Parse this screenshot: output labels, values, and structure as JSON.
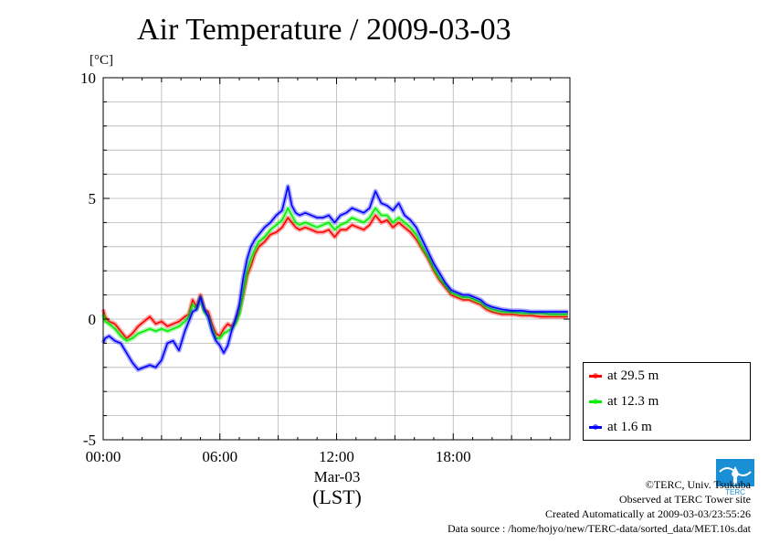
{
  "chart_data": {
    "type": "line",
    "title": "Air Temperature / 2009-03-03",
    "ylabel": "[°C]",
    "xlabel": "(LST)",
    "date_label": "Mar-03",
    "ylim": [
      -5,
      10
    ],
    "xlim": [
      0,
      24
    ],
    "y_ticks": [
      {
        "value": 10,
        "label": "10"
      },
      {
        "value": 5,
        "label": "5"
      },
      {
        "value": 0,
        "label": "0"
      },
      {
        "value": -5,
        "label": "-5"
      }
    ],
    "x_ticks": [
      {
        "value": 0,
        "label": "00:00"
      },
      {
        "value": 6,
        "label": "06:00"
      },
      {
        "value": 12,
        "label": "12:00"
      },
      {
        "value": 18,
        "label": "18:00"
      }
    ],
    "grid": true,
    "legend_position": "lower-right-outside",
    "series": [
      {
        "name": "at 29.5 m",
        "color": "#ff0000",
        "x": [
          0,
          0.1,
          0.3,
          0.6,
          0.9,
          1.2,
          1.5,
          1.8,
          2.1,
          2.4,
          2.7,
          3.0,
          3.3,
          3.6,
          3.9,
          4.2,
          4.4,
          4.6,
          4.8,
          5.0,
          5.2,
          5.4,
          5.6,
          5.8,
          6.0,
          6.2,
          6.4,
          6.6,
          6.8,
          7.0,
          7.2,
          7.4,
          7.6,
          7.8,
          8.0,
          8.3,
          8.6,
          8.9,
          9.2,
          9.5,
          9.7,
          9.9,
          10.1,
          10.4,
          10.7,
          11.0,
          11.3,
          11.6,
          11.9,
          12.2,
          12.5,
          12.8,
          13.1,
          13.4,
          13.7,
          14.0,
          14.3,
          14.6,
          14.9,
          15.2,
          15.5,
          15.8,
          16.1,
          16.4,
          16.7,
          17.0,
          17.3,
          17.6,
          17.9,
          18.2,
          18.5,
          18.8,
          19.1,
          19.4,
          19.7,
          20.0,
          20.5,
          21.0,
          21.5,
          22.0,
          22.5,
          23.0,
          23.5,
          23.9
        ],
        "values": [
          0.4,
          0.1,
          -0.1,
          -0.2,
          -0.5,
          -0.8,
          -0.6,
          -0.3,
          -0.1,
          0.1,
          -0.2,
          -0.1,
          -0.3,
          -0.2,
          -0.1,
          0.1,
          0.2,
          0.8,
          0.5,
          1.0,
          0.4,
          0.3,
          -0.2,
          -0.6,
          -0.7,
          -0.4,
          -0.2,
          -0.3,
          -0.1,
          0.3,
          1.0,
          1.8,
          2.2,
          2.7,
          3.0,
          3.2,
          3.5,
          3.6,
          3.8,
          4.2,
          4.0,
          3.8,
          3.7,
          3.8,
          3.7,
          3.6,
          3.6,
          3.7,
          3.4,
          3.7,
          3.7,
          3.9,
          3.8,
          3.7,
          3.9,
          4.3,
          4.0,
          4.1,
          3.8,
          4.0,
          3.8,
          3.6,
          3.3,
          2.9,
          2.5,
          2.0,
          1.6,
          1.3,
          1.0,
          0.9,
          0.8,
          0.8,
          0.7,
          0.6,
          0.4,
          0.3,
          0.2,
          0.2,
          0.15,
          0.15,
          0.1,
          0.1,
          0.1,
          0.1
        ]
      },
      {
        "name": "at 12.3 m",
        "color": "#00ee00",
        "x": [
          0,
          0.1,
          0.3,
          0.6,
          0.9,
          1.2,
          1.5,
          1.8,
          2.1,
          2.4,
          2.7,
          3.0,
          3.3,
          3.6,
          3.9,
          4.2,
          4.4,
          4.6,
          4.8,
          5.0,
          5.2,
          5.4,
          5.6,
          5.8,
          6.0,
          6.2,
          6.4,
          6.6,
          6.8,
          7.0,
          7.2,
          7.4,
          7.6,
          7.8,
          8.0,
          8.3,
          8.6,
          8.9,
          9.2,
          9.5,
          9.7,
          9.9,
          10.1,
          10.4,
          10.7,
          11.0,
          11.3,
          11.6,
          11.9,
          12.2,
          12.5,
          12.8,
          13.1,
          13.4,
          13.7,
          14.0,
          14.3,
          14.6,
          14.9,
          15.2,
          15.5,
          15.8,
          16.1,
          16.4,
          16.7,
          17.0,
          17.3,
          17.6,
          17.9,
          18.2,
          18.5,
          18.8,
          19.1,
          19.4,
          19.7,
          20.0,
          20.5,
          21.0,
          21.5,
          22.0,
          22.5,
          23.0,
          23.5,
          23.9
        ],
        "values": [
          0.2,
          -0.1,
          -0.2,
          -0.4,
          -0.7,
          -0.9,
          -0.8,
          -0.6,
          -0.5,
          -0.4,
          -0.5,
          -0.4,
          -0.5,
          -0.4,
          -0.3,
          -0.1,
          0.1,
          0.6,
          0.4,
          0.9,
          0.3,
          0.1,
          -0.4,
          -0.8,
          -0.8,
          -0.6,
          -0.5,
          -0.4,
          -0.2,
          0.2,
          1.1,
          2.0,
          2.5,
          2.9,
          3.2,
          3.4,
          3.7,
          3.9,
          4.1,
          4.6,
          4.3,
          4.0,
          3.9,
          4.0,
          3.9,
          3.8,
          3.9,
          4.0,
          3.7,
          3.9,
          4.0,
          4.2,
          4.1,
          4.0,
          4.2,
          4.6,
          4.3,
          4.3,
          4.0,
          4.2,
          4.0,
          3.8,
          3.5,
          3.0,
          2.6,
          2.1,
          1.7,
          1.4,
          1.1,
          1.0,
          0.9,
          0.9,
          0.8,
          0.7,
          0.5,
          0.4,
          0.3,
          0.3,
          0.25,
          0.25,
          0.25,
          0.2,
          0.2,
          0.2
        ]
      },
      {
        "name": "at 1.6 m",
        "color": "#0000ff",
        "x": [
          0,
          0.1,
          0.3,
          0.6,
          0.9,
          1.2,
          1.5,
          1.8,
          2.1,
          2.4,
          2.7,
          3.0,
          3.3,
          3.6,
          3.9,
          4.2,
          4.4,
          4.6,
          4.8,
          5.0,
          5.2,
          5.4,
          5.6,
          5.8,
          6.0,
          6.2,
          6.4,
          6.6,
          6.8,
          7.0,
          7.2,
          7.4,
          7.6,
          7.8,
          8.0,
          8.3,
          8.6,
          8.9,
          9.2,
          9.5,
          9.7,
          9.9,
          10.1,
          10.4,
          10.7,
          11.0,
          11.3,
          11.6,
          11.9,
          12.2,
          12.5,
          12.8,
          13.1,
          13.4,
          13.7,
          14.0,
          14.3,
          14.6,
          14.9,
          15.2,
          15.5,
          15.8,
          16.1,
          16.4,
          16.7,
          17.0,
          17.3,
          17.6,
          17.9,
          18.2,
          18.5,
          18.8,
          19.1,
          19.4,
          19.7,
          20.0,
          20.5,
          21.0,
          21.5,
          22.0,
          22.5,
          23.0,
          23.5,
          23.9
        ],
        "values": [
          -1.0,
          -0.8,
          -0.7,
          -0.9,
          -1.0,
          -1.4,
          -1.8,
          -2.1,
          -2.0,
          -1.9,
          -2.0,
          -1.7,
          -1.0,
          -0.9,
          -1.3,
          -0.5,
          -0.1,
          0.3,
          0.4,
          0.9,
          0.4,
          0.1,
          -0.5,
          -0.9,
          -1.1,
          -1.4,
          -1.1,
          -0.5,
          0.0,
          0.6,
          1.7,
          2.5,
          3.0,
          3.3,
          3.5,
          3.8,
          4.0,
          4.3,
          4.5,
          5.5,
          4.7,
          4.4,
          4.3,
          4.4,
          4.3,
          4.2,
          4.2,
          4.3,
          4.0,
          4.3,
          4.4,
          4.6,
          4.5,
          4.4,
          4.6,
          5.3,
          4.8,
          4.7,
          4.5,
          4.8,
          4.3,
          4.1,
          3.8,
          3.3,
          2.8,
          2.3,
          1.9,
          1.5,
          1.2,
          1.1,
          1.0,
          1.0,
          0.9,
          0.8,
          0.6,
          0.5,
          0.4,
          0.35,
          0.35,
          0.3,
          0.3,
          0.3,
          0.3,
          0.3
        ]
      }
    ]
  },
  "credits": {
    "copyright": "©TERC, Univ. Tsukuba",
    "observed": "Observed at TERC Tower site",
    "created": "Created Automatically at 2009-03-03/23:55:26",
    "source": "Data source : /home/hojyo/new/TERC-data/sorted_data/MET.10s.dat"
  },
  "logo": {
    "text": "TERC",
    "color": "#1a8fd6"
  }
}
